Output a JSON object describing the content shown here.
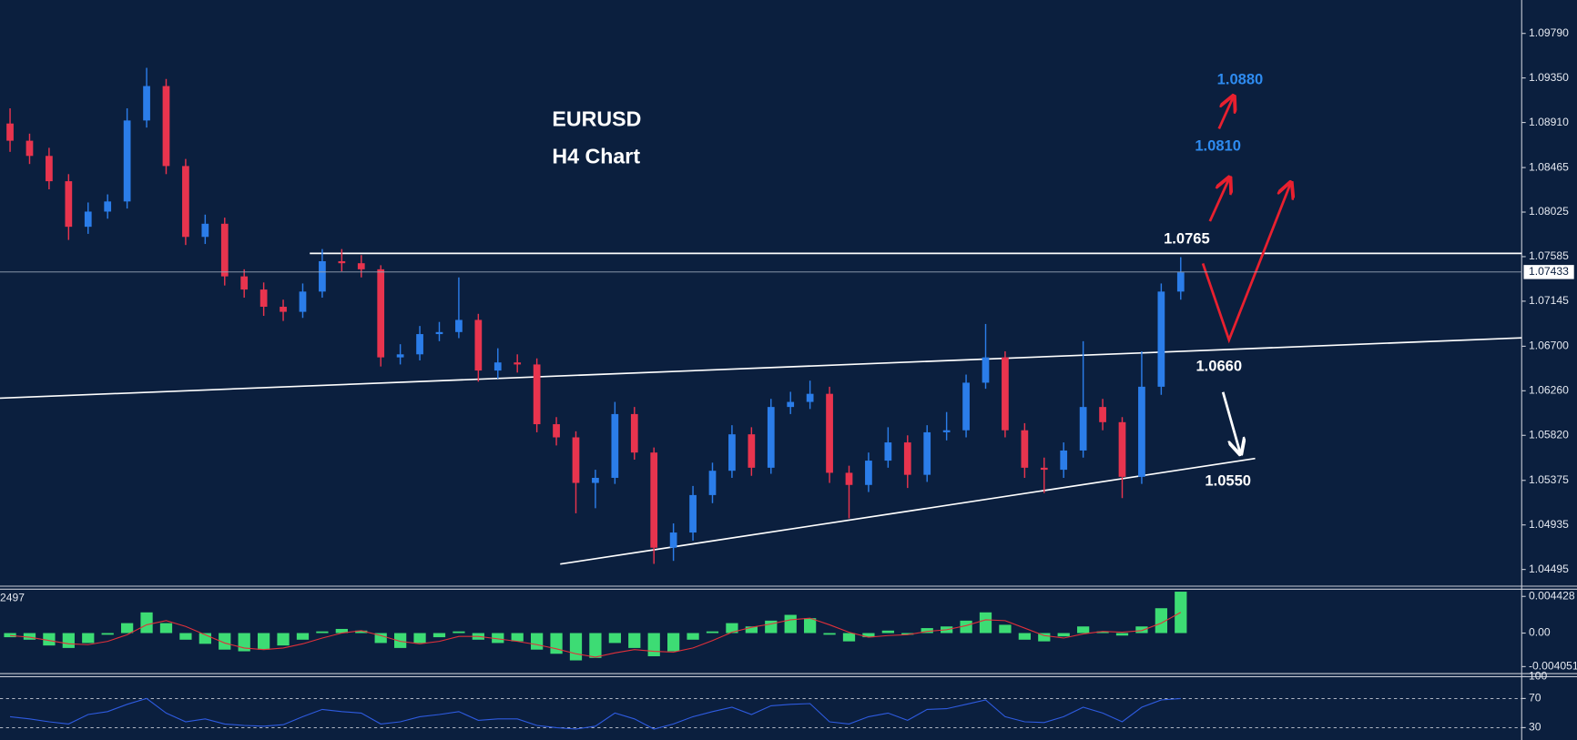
{
  "chart_data": [
    {
      "type": "candlestick",
      "title": "EURUSD",
      "subtitle": "H4 Chart",
      "open": [
        1.089,
        1.0873,
        1.0858,
        1.0833,
        1.0788,
        1.0803,
        1.0813,
        1.0893,
        1.0927,
        1.0848,
        1.0778,
        1.0791,
        1.0739,
        1.0726,
        1.0709,
        1.0704,
        1.0724,
        1.0754,
        1.0752,
        1.0746,
        1.0659,
        1.0662,
        1.0682,
        1.0684,
        1.0696,
        1.0646,
        1.0654,
        1.0652,
        1.0593,
        1.058,
        1.0535,
        1.054,
        1.0603,
        1.0565,
        1.0471,
        1.0486,
        1.0523,
        1.0547,
        1.0583,
        1.055,
        1.061,
        1.0615,
        1.0623,
        1.0545,
        1.0533,
        1.0557,
        1.0575,
        1.0543,
        1.0585,
        1.0587,
        1.0634,
        1.0659,
        1.0587,
        1.055,
        1.0548,
        1.0567,
        1.061,
        1.0595,
        1.0541,
        1.063,
        1.0724
      ],
      "high": [
        1.0905,
        1.088,
        1.0866,
        1.084,
        1.0812,
        1.082,
        1.0905,
        1.0945,
        1.0934,
        1.0855,
        1.08,
        1.0797,
        1.0746,
        1.0733,
        1.0716,
        1.0732,
        1.0766,
        1.0766,
        1.076,
        1.075,
        1.0672,
        1.069,
        1.0694,
        1.0738,
        1.0702,
        1.0668,
        1.0662,
        1.0658,
        1.06,
        1.0586,
        1.0548,
        1.0615,
        1.061,
        1.057,
        1.0495,
        1.0532,
        1.0555,
        1.0592,
        1.059,
        1.0618,
        1.0625,
        1.0636,
        1.063,
        1.0552,
        1.0565,
        1.059,
        1.0582,
        1.0592,
        1.0605,
        1.0642,
        1.0692,
        1.0665,
        1.0594,
        1.056,
        1.0575,
        1.0675,
        1.0618,
        1.06,
        1.0665,
        1.0732,
        1.0758
      ],
      "low": [
        1.0862,
        1.085,
        1.0825,
        1.0775,
        1.0781,
        1.0796,
        1.0806,
        1.0886,
        1.084,
        1.077,
        1.0771,
        1.073,
        1.0718,
        1.07,
        1.0695,
        1.0698,
        1.0718,
        1.0744,
        1.0738,
        1.065,
        1.0652,
        1.0656,
        1.0675,
        1.0678,
        1.0635,
        1.0638,
        1.0644,
        1.0585,
        1.0572,
        1.0505,
        1.051,
        1.0534,
        1.0558,
        1.0455,
        1.0458,
        1.0478,
        1.0515,
        1.054,
        1.0542,
        1.0544,
        1.0603,
        1.0608,
        1.0535,
        1.05,
        1.0526,
        1.055,
        1.053,
        1.0536,
        1.0577,
        1.058,
        1.0628,
        1.058,
        1.054,
        1.0525,
        1.054,
        1.056,
        1.0587,
        1.052,
        1.0534,
        1.0622,
        1.0716
      ],
      "close": [
        1.0873,
        1.0858,
        1.0833,
        1.0788,
        1.0803,
        1.0813,
        1.0893,
        1.0927,
        1.0848,
        1.0778,
        1.0791,
        1.0739,
        1.0726,
        1.0709,
        1.0704,
        1.0724,
        1.0754,
        1.0752,
        1.0746,
        1.0659,
        1.0662,
        1.0682,
        1.0684,
        1.0696,
        1.0646,
        1.0654,
        1.0652,
        1.0593,
        1.058,
        1.0535,
        1.054,
        1.0603,
        1.0565,
        1.0471,
        1.0486,
        1.0523,
        1.0547,
        1.0583,
        1.055,
        1.061,
        1.0615,
        1.0623,
        1.0545,
        1.0533,
        1.0557,
        1.0575,
        1.0543,
        1.0585,
        1.0587,
        1.0634,
        1.0659,
        1.0587,
        1.055,
        1.0548,
        1.0567,
        1.061,
        1.0595,
        1.0541,
        1.063,
        1.0724,
        1.0743
      ],
      "up_color": "#2b7de9",
      "down_color": "#e8344e",
      "ylim": [
        1.0434,
        1.1012
      ],
      "yticks": [
        {
          "value": 1.0979,
          "label": "1.09790"
        },
        {
          "value": 1.0935,
          "label": "1.09350"
        },
        {
          "value": 1.0891,
          "label": "1.08910"
        },
        1.08465,
        1.08025,
        1.07585,
        1.07145,
        {
          "value": 1.067,
          "label": "1.06700"
        },
        {
          "value": 1.0626,
          "label": "1.06260"
        },
        {
          "value": 1.0582,
          "label": "1.05820"
        },
        1.05375,
        1.04935,
        1.04495
      ],
      "current_price": 1.07433,
      "annotations": [
        {
          "text": "1.0880",
          "color": "#2e8bf0"
        },
        {
          "text": "1.0810",
          "color": "#2e8bf0"
        },
        {
          "text": "1.0765",
          "color": "#ffffff"
        },
        {
          "text": "1.0660",
          "color": "#ffffff"
        },
        {
          "text": "1.0550",
          "color": "#ffffff"
        }
      ]
    },
    {
      "type": "macd",
      "label": "2497",
      "values": [
        -0.0005,
        -0.0008,
        -0.0015,
        -0.0018,
        -0.0012,
        -0.0002,
        0.0012,
        0.0025,
        0.0012,
        -0.0008,
        -0.0013,
        -0.002,
        -0.0022,
        -0.002,
        -0.0015,
        -0.0008,
        0.0002,
        0.0005,
        0.0003,
        -0.0012,
        -0.0018,
        -0.0012,
        -0.0005,
        0.0002,
        -0.0008,
        -0.0012,
        -0.001,
        -0.002,
        -0.0025,
        -0.0033,
        -0.003,
        -0.0012,
        -0.0018,
        -0.0028,
        -0.0022,
        -0.0008,
        0.0002,
        0.0012,
        0.0008,
        0.0015,
        0.0022,
        0.0018,
        -0.0002,
        -0.001,
        -0.0005,
        0.0003,
        -0.0002,
        0.0006,
        0.0008,
        0.0015,
        0.0025,
        0.001,
        -0.0008,
        -0.001,
        -0.0004,
        0.0008,
        0.0002,
        -0.0003,
        0.0008,
        0.003,
        0.005
      ],
      "color": "#3ddc74",
      "signal": [
        -0.0003,
        -0.0005,
        -0.0009,
        -0.0013,
        -0.0014,
        -0.001,
        -0.0002,
        0.001,
        0.0015,
        0.0008,
        -0.0002,
        -0.0012,
        -0.0018,
        -0.002,
        -0.0018,
        -0.0013,
        -0.0006,
        0,
        0.0003,
        -0.0003,
        -0.001,
        -0.0013,
        -0.001,
        -0.0004,
        -0.0004,
        -0.0007,
        -0.001,
        -0.0014,
        -0.0019,
        -0.0025,
        -0.0029,
        -0.0024,
        -0.002,
        -0.0022,
        -0.0023,
        -0.0018,
        -0.0009,
        0.0001,
        0.0007,
        0.0011,
        0.0016,
        0.0018,
        0.001,
        0.0001,
        -0.0005,
        -0.0003,
        -0.0002,
        0.0002,
        0.0004,
        0.0009,
        0.0016,
        0.0015,
        0.0006,
        -0.0003,
        -0.0006,
        -0.0001,
        0.0002,
        0.0001,
        0.0003,
        0.0012,
        0.0025
      ],
      "signal_color": "#e0303a",
      "ylim": [
        -0.0049,
        0.0053
      ],
      "yticks": [
        0.004428,
        {
          "value": 0,
          "label": "0.00"
        },
        -0.004051
      ]
    },
    {
      "type": "line",
      "values": [
        45,
        42,
        38,
        35,
        48,
        52,
        62,
        70,
        50,
        38,
        42,
        35,
        33,
        32,
        34,
        45,
        55,
        52,
        50,
        35,
        38,
        45,
        48,
        52,
        40,
        42,
        42,
        33,
        30,
        28,
        32,
        50,
        42,
        28,
        35,
        45,
        52,
        58,
        48,
        60,
        62,
        63,
        38,
        35,
        45,
        50,
        40,
        55,
        56,
        62,
        68,
        45,
        38,
        37,
        45,
        58,
        50,
        38,
        58,
        68,
        70
      ],
      "color": "#2e5be0",
      "ylim": [
        13,
        100
      ],
      "yticks": [
        100,
        70,
        30
      ],
      "grid": true
    }
  ]
}
